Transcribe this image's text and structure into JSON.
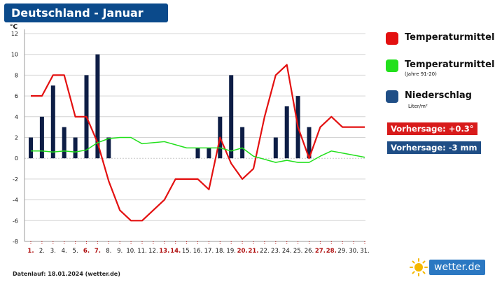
{
  "header": {
    "title": "Deutschland - Januar"
  },
  "legend": {
    "temp_label": "Temperaturmittel",
    "temp_color": "#e31010",
    "normal_label": "Temperaturmittel",
    "normal_note": "(Jahre 91-20)",
    "normal_color": "#22e01c",
    "precip_label": "Niederschlag",
    "precip_unit": "Liter/m²",
    "precip_color": "#0d1d45"
  },
  "forecast": {
    "temp": "Vorhersage: +0.3°",
    "temp_bg": "#d81b1b",
    "precip": "Vorhersage: -3 mm",
    "precip_bg": "#1f4e86"
  },
  "footer": {
    "note": "Datenlauf: 18.01.2024 (wetter.de)"
  },
  "brand": {
    "name": "wetter",
    "suffix": ".de",
    "sun_icon": "sun-icon"
  },
  "chart_data": {
    "type": "line",
    "ylabel": "°C",
    "ylim": [
      -8,
      12
    ],
    "yticks": [
      -8,
      -6,
      -4,
      -2,
      0,
      2,
      4,
      6,
      8,
      10,
      12
    ],
    "categories": [
      "1.",
      "2.",
      "3.",
      "4.",
      "5.",
      "6.",
      "7.",
      "8.",
      "9.",
      "10.",
      "11.",
      "12.",
      "13.",
      "14.",
      "15.",
      "16.",
      "17.",
      "18.",
      "19.",
      "20.",
      "21.",
      "22.",
      "23.",
      "24.",
      "25.",
      "26.",
      "27.",
      "28.",
      "29.",
      "30.",
      "31."
    ],
    "weekend_days": [
      1,
      6,
      7,
      13,
      14,
      20,
      21,
      27,
      28
    ],
    "grid": true,
    "series": [
      {
        "name": "Temperaturmittel",
        "type": "line",
        "color": "#e31010",
        "values": [
          6,
          6,
          8,
          8,
          4,
          4,
          1.5,
          -2.2,
          -5,
          -6,
          -6,
          -5,
          -4,
          -2,
          -2,
          -2,
          -3,
          2,
          -0.5,
          -2,
          -1,
          4,
          8,
          9,
          3,
          0,
          3,
          4,
          3,
          3,
          3
        ]
      },
      {
        "name": "Temperaturmittel (Jahre 91-20)",
        "type": "line",
        "color": "#22e01c",
        "values": [
          0.7,
          0.7,
          0.6,
          0.7,
          0.6,
          0.8,
          1.5,
          1.9,
          2.0,
          2.0,
          1.4,
          1.5,
          1.6,
          1.3,
          1.0,
          1.0,
          1.0,
          1.0,
          0.7,
          1.0,
          0.2,
          -0.1,
          -0.4,
          -0.2,
          -0.4,
          -0.4,
          0.2,
          0.7,
          0.5,
          0.3,
          0.1
        ]
      },
      {
        "name": "Niederschlag",
        "type": "bar",
        "color": "#0d1d45",
        "values": [
          2,
          4,
          7,
          3,
          2,
          8,
          10,
          2,
          null,
          null,
          null,
          null,
          null,
          null,
          null,
          1,
          1,
          4,
          8,
          3,
          null,
          null,
          2,
          5,
          6,
          3,
          null,
          null,
          null,
          null,
          null
        ]
      }
    ]
  }
}
